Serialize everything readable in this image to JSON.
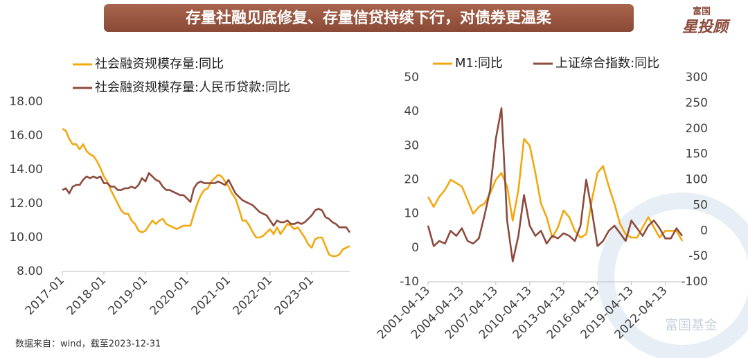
{
  "header": {
    "title": "存量社融见底修复、存量信贷持续下行，对债券更温柔"
  },
  "logo": {
    "line1": "富国",
    "line2": "星投顾"
  },
  "footer": {
    "source": "数据来自：wind，截至2023-12-31"
  },
  "watermark": "富国基金",
  "chart_data": [
    {
      "type": "line",
      "categories": [
        "2017-01",
        null,
        null,
        null,
        null,
        null,
        null,
        null,
        null,
        null,
        null,
        null,
        "2018-01",
        null,
        null,
        null,
        null,
        null,
        null,
        null,
        null,
        null,
        null,
        null,
        "2019-01",
        null,
        null,
        null,
        null,
        null,
        null,
        null,
        null,
        null,
        null,
        null,
        "2020-01",
        null,
        null,
        null,
        null,
        null,
        null,
        null,
        null,
        null,
        null,
        null,
        "2021-01",
        null,
        null,
        null,
        null,
        null,
        null,
        null,
        null,
        null,
        null,
        null,
        "2022-01",
        null,
        null,
        null,
        null,
        null,
        null,
        null,
        null,
        null,
        null,
        null,
        "2023-01",
        null,
        null,
        null,
        null,
        null,
        null,
        null,
        null,
        null,
        null,
        null
      ],
      "series": [
        {
          "name": "社会融资规模存量:同比",
          "color": "#f2a80f",
          "values": [
            16.4,
            16.3,
            15.8,
            15.5,
            15.5,
            15.2,
            15.5,
            15.1,
            14.9,
            14.8,
            14.5,
            14.1,
            13.6,
            13.3,
            12.8,
            12.4,
            12.0,
            11.6,
            11.4,
            11.4,
            11.0,
            10.8,
            10.4,
            10.3,
            10.4,
            10.7,
            11.0,
            10.8,
            11.0,
            11.1,
            10.8,
            10.7,
            10.6,
            10.5,
            10.6,
            10.7,
            10.7,
            10.7,
            11.4,
            12.0,
            12.5,
            12.8,
            12.9,
            13.3,
            13.5,
            13.7,
            13.6,
            13.3,
            13.0,
            12.6,
            12.3,
            11.7,
            11.0,
            11.0,
            10.7,
            10.3,
            10.0,
            10.0,
            10.1,
            10.3,
            10.5,
            10.2,
            10.6,
            10.2,
            10.5,
            10.8,
            10.7,
            10.5,
            10.6,
            10.3,
            10.0,
            9.6,
            9.4,
            9.9,
            10.0,
            10.0,
            9.5,
            9.0,
            8.9,
            8.9,
            9.0,
            9.3,
            9.4,
            9.5
          ]
        },
        {
          "name": "社会融资规模存量:人民币贷款:同比",
          "color": "#8c4b3c",
          "values": [
            12.8,
            12.9,
            12.6,
            13.0,
            13.1,
            13.1,
            13.4,
            13.6,
            13.5,
            13.6,
            13.5,
            13.6,
            13.2,
            13.2,
            13.0,
            13.0,
            12.8,
            12.8,
            12.9,
            12.9,
            13.0,
            12.9,
            13.1,
            13.5,
            13.3,
            13.8,
            13.6,
            13.4,
            13.3,
            13.0,
            12.8,
            12.8,
            12.7,
            12.6,
            12.5,
            12.5,
            12.3,
            12.1,
            12.9,
            13.2,
            13.3,
            13.2,
            13.2,
            13.2,
            13.2,
            13.3,
            13.2,
            13.1,
            13.4,
            13.0,
            12.6,
            12.4,
            12.2,
            12.1,
            12.0,
            11.9,
            11.7,
            11.5,
            11.4,
            11.3,
            11.0,
            10.7,
            11.0,
            10.9,
            10.9,
            11.0,
            10.8,
            10.8,
            10.9,
            10.8,
            10.9,
            11.1,
            11.3,
            11.6,
            11.7,
            11.6,
            11.2,
            11.1,
            10.9,
            10.8,
            10.6,
            10.6,
            10.6,
            10.3
          ]
        }
      ],
      "ylim": [
        8,
        18
      ],
      "yticks": [
        {
          "value": 8,
          "label": "8.00"
        },
        {
          "value": 10,
          "label": "10.00"
        },
        {
          "value": 12,
          "label": "12.00"
        },
        {
          "value": 14,
          "label": "14.00"
        },
        {
          "value": 16,
          "label": "16.00"
        },
        {
          "value": 18,
          "label": "18.00"
        }
      ]
    },
    {
      "type": "line",
      "categories": [
        "2001-04-13",
        null,
        null,
        null,
        null,
        null,
        "2004-04-13",
        null,
        null,
        null,
        null,
        null,
        "2007-04-13",
        null,
        null,
        null,
        null,
        null,
        "2010-04-13",
        null,
        null,
        null,
        null,
        null,
        "2013-04-13",
        null,
        null,
        null,
        null,
        null,
        "2016-04-13",
        null,
        null,
        null,
        null,
        null,
        "2019-04-13",
        null,
        null,
        null,
        null,
        null,
        "2022-04-13",
        null,
        null,
        null
      ],
      "series": [
        {
          "name": "M1:同比",
          "color": "#f2a80f",
          "values": [
            15,
            12,
            15,
            17,
            20,
            19,
            18,
            14,
            10,
            12,
            13,
            16,
            20,
            22,
            18,
            8,
            17,
            32,
            30,
            22,
            13,
            9,
            3,
            6,
            11,
            9,
            5,
            3,
            4,
            14,
            22,
            24,
            18,
            13,
            7,
            4,
            3,
            3,
            6,
            9,
            6,
            3,
            5,
            5,
            5,
            2
          ]
        },
        {
          "name": "上证综合指数:同比",
          "color": "#8c4b3c",
          "axis": "y2",
          "values": [
            10,
            -30,
            -20,
            -25,
            0,
            -10,
            5,
            -20,
            -25,
            -15,
            30,
            80,
            180,
            240,
            20,
            -60,
            -10,
            70,
            10,
            -10,
            0,
            -25,
            -10,
            -15,
            -5,
            -10,
            -20,
            10,
            100,
            40,
            -30,
            -20,
            0,
            10,
            -5,
            -20,
            20,
            5,
            -10,
            10,
            20,
            5,
            -15,
            -15,
            5,
            -10
          ]
        }
      ],
      "ylim": [
        -10,
        50
      ],
      "yticks": [
        -10,
        0,
        10,
        20,
        30,
        40,
        50
      ],
      "y2lim": [
        -100,
        300
      ],
      "y2ticks": [
        -100,
        -50,
        0,
        50,
        100,
        150,
        200,
        250,
        300
      ]
    }
  ]
}
